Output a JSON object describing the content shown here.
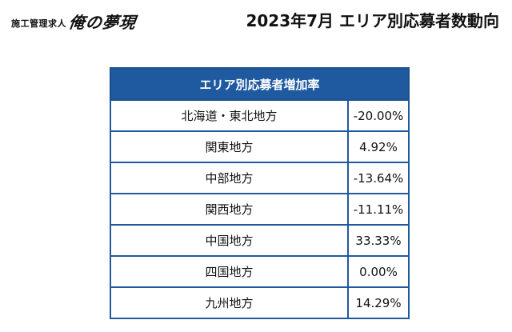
{
  "header": {
    "brand_prefix": "施工管理求人",
    "brand_logo": "俺の夢現",
    "title": "2023年7月 エリア別応募者数動向"
  },
  "table": {
    "heading": "エリア別応募者増加率",
    "rows": [
      {
        "area": "北海道・東北地方",
        "rate": "-20.00%"
      },
      {
        "area": "関東地方",
        "rate": "4.92%"
      },
      {
        "area": "中部地方",
        "rate": "-13.64%"
      },
      {
        "area": "関西地方",
        "rate": "-11.11%"
      },
      {
        "area": "中国地方",
        "rate": "33.33%"
      },
      {
        "area": "四国地方",
        "rate": "0.00%"
      },
      {
        "area": "九州地方",
        "rate": "14.29%"
      }
    ]
  },
  "colors": {
    "header_bg": "#1f59a0",
    "border": "#1f59a0",
    "text": "#111111"
  }
}
